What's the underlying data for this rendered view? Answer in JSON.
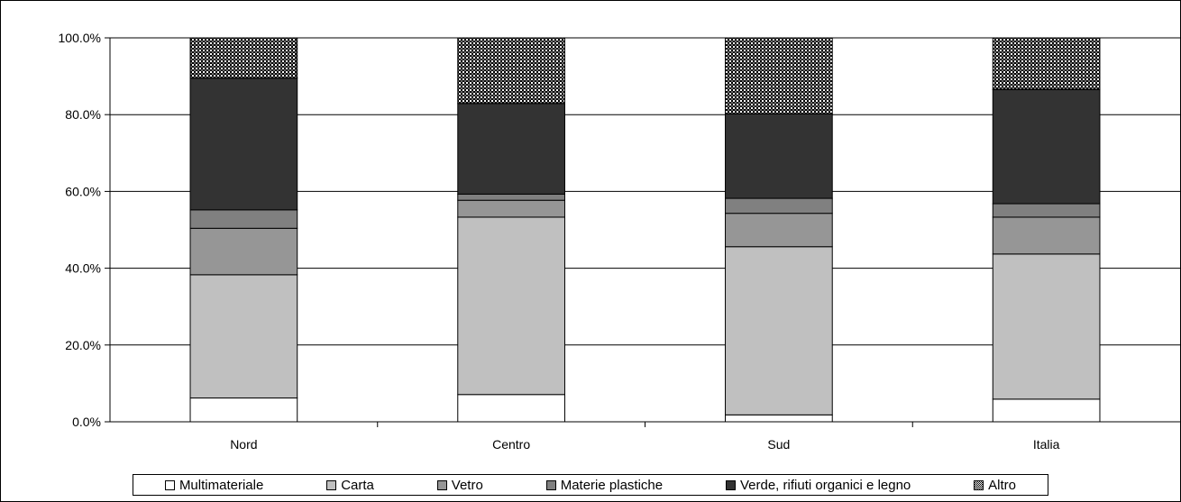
{
  "chart_data": {
    "type": "bar",
    "stacked": true,
    "categories": [
      "Nord",
      "Centro",
      "Sud",
      "Italia"
    ],
    "series": [
      {
        "name": "Multimateriale",
        "color": "#ffffff",
        "values": [
          6.2,
          7.1,
          1.8,
          5.9
        ]
      },
      {
        "name": "Carta",
        "color": "#c0c0c0",
        "values": [
          32.1,
          46.2,
          43.8,
          37.8
        ]
      },
      {
        "name": "Vetro",
        "color": "#969696",
        "values": [
          12.1,
          4.4,
          8.7,
          9.6
        ]
      },
      {
        "name": "Materie plastiche",
        "color": "#808080",
        "values": [
          4.8,
          1.6,
          3.9,
          3.5
        ]
      },
      {
        "name": "Verde, rifiuti organici e legno",
        "color": "#333333",
        "values": [
          34.3,
          23.6,
          22.0,
          29.7
        ]
      },
      {
        "name": "Altro",
        "color": "#808080",
        "pattern": "dotted",
        "values": [
          10.5,
          17.1,
          19.8,
          13.5
        ]
      }
    ],
    "y_ticks": [
      "0.0%",
      "20.0%",
      "40.0%",
      "60.0%",
      "80.0%",
      "100.0%"
    ],
    "ylim": [
      0,
      100
    ],
    "grid": true,
    "legend_position": "bottom"
  }
}
